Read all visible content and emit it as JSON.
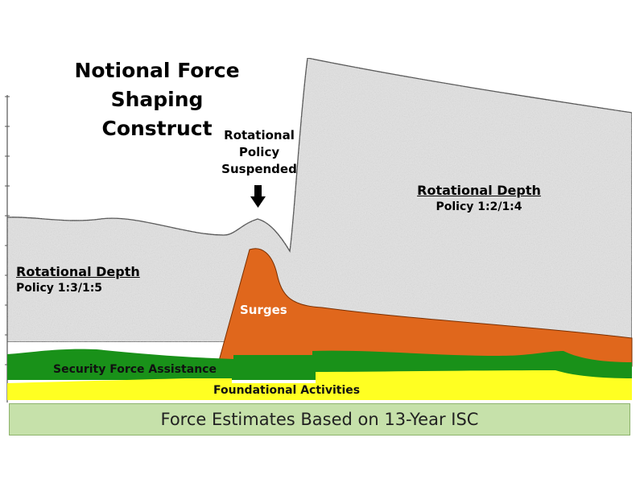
{
  "title": {
    "line1": "Notional Force Shaping",
    "line2": "Construct"
  },
  "callout": {
    "line1": "Rotational",
    "line2": "Policy",
    "line3": "Suspended"
  },
  "regions": {
    "left": {
      "heading": "Rotational Depth",
      "policy": "Policy 1:3/1:5"
    },
    "right": {
      "heading": "Rotational Depth",
      "policy": "Policy 1:2/1:4"
    }
  },
  "bands": {
    "surges": "Surges",
    "security_force_assistance": "Security Force Assistance",
    "foundational_activities": "Foundational Activities"
  },
  "footer": "Force Estimates Based on 13-Year ISC",
  "colors": {
    "rotational_depth": "#e3e3e3",
    "surges": "#e0671c",
    "security_force_assistance": "#199119",
    "foundational_activities": "#ffff22",
    "footer_fill": "#c6e1aa",
    "arrow": "#000000"
  }
}
